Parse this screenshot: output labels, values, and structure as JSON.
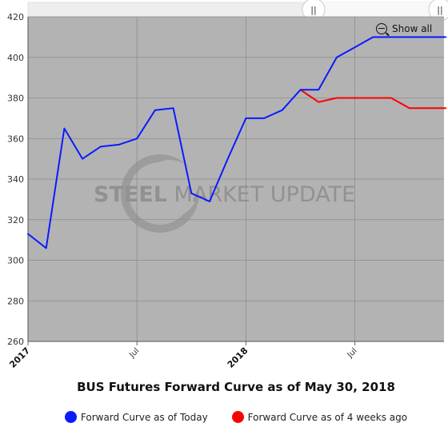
{
  "chart_data": {
    "type": "line",
    "title": "BUS Futures Forward Curve as of May 30, 2018",
    "ylim": [
      260,
      420
    ],
    "y_ticks": [
      "260",
      "280",
      "300",
      "320",
      "340",
      "360",
      "380",
      "400",
      "420"
    ],
    "x_ticks": [
      {
        "label": "2017",
        "bold": true
      },
      {
        "label": "Jul",
        "bold": false
      },
      {
        "label": "2018",
        "bold": true
      },
      {
        "label": "Jul",
        "bold": false
      }
    ],
    "grid": true,
    "legend_position": "bottom",
    "series": [
      {
        "name": "Forward Curve as of Today",
        "color": "#0a1bff",
        "x": [
          "2017-01",
          "2017-02",
          "2017-03",
          "2017-04",
          "2017-05",
          "2017-06",
          "2017-07",
          "2017-08",
          "2017-09",
          "2017-10",
          "2017-11",
          "2017-12",
          "2018-01",
          "2018-02",
          "2018-03",
          "2018-04",
          "2018-05",
          "2018-06",
          "2018-07",
          "2018-08",
          "2018-09",
          "2018-10",
          "2018-11",
          "2018-12"
        ],
        "values": [
          313,
          306,
          365,
          350,
          356,
          357,
          360,
          374,
          375,
          333,
          329,
          350,
          370,
          370,
          374,
          384,
          384,
          400,
          405,
          410,
          410,
          410,
          410,
          410
        ]
      },
      {
        "name": "Forward Curve as of 4 weeks ago",
        "color": "#ff0000",
        "x": [
          "2018-04",
          "2018-05",
          "2018-06",
          "2018-07",
          "2018-08",
          "2018-09",
          "2018-10",
          "2018-11",
          "2018-12"
        ],
        "values": [
          384,
          378,
          380,
          380,
          380,
          380,
          375,
          375,
          375
        ]
      }
    ]
  },
  "controls": {
    "show_all_label": "Show all",
    "navigator_handle_left": "||",
    "navigator_handle_right": "||"
  },
  "watermark": {
    "text_bold": "STEEL",
    "text_regular": " MARKET UPDATE"
  }
}
